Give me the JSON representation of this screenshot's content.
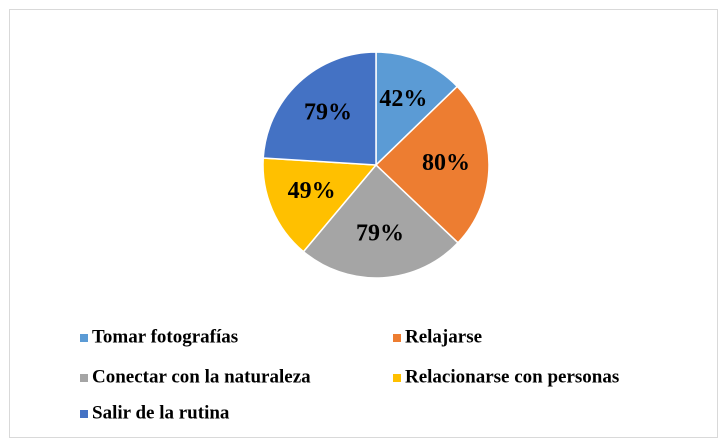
{
  "chart_data": {
    "type": "pie",
    "categories": [
      "Tomar fotografías",
      "Relajarse",
      "Conectar con la naturaleza",
      "Relacionarse con personas",
      "Salir de la rutina"
    ],
    "values": [
      42,
      80,
      79,
      49,
      79
    ],
    "value_labels": [
      "42%",
      "80%",
      "79%",
      "49%",
      "79%"
    ],
    "colors": [
      "#5b9bd5",
      "#ed7d31",
      "#a5a5a5",
      "#ffc000",
      "#4472c4"
    ],
    "legend": "bottom"
  }
}
